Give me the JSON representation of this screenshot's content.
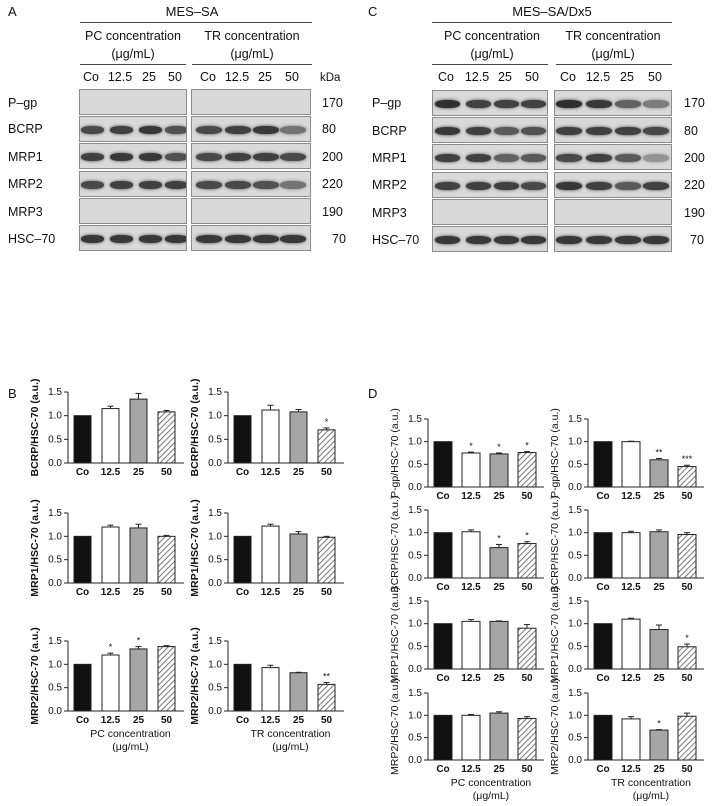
{
  "letters": [
    "A",
    "B",
    "C",
    "D"
  ],
  "blotA": {
    "title": "MES–SA",
    "pc_title": [
      "PC concentration",
      "(μg/mL)"
    ],
    "tr_title": [
      "TR concentration",
      "(μg/mL)"
    ],
    "lanes": [
      "Co",
      "12.5",
      "25",
      "50"
    ],
    "kda": "kDa",
    "rows": [
      {
        "label": "P–gp",
        "mw": "170"
      },
      {
        "label": "BCRP",
        "mw": "80"
      },
      {
        "label": "MRP1",
        "mw": "200"
      },
      {
        "label": "MRP2",
        "mw": "220"
      },
      {
        "label": "MRP3",
        "mw": "190"
      },
      {
        "label": "HSC–70",
        "mw": "70"
      }
    ]
  },
  "blotC": {
    "title": "MES–SA/Dx5",
    "pc_title": [
      "PC concentration",
      "(μg/mL)"
    ],
    "tr_title": [
      "TR concentration",
      "(μg/mL)"
    ],
    "lanes": [
      "Co",
      "12.5",
      "25",
      "50"
    ],
    "rows": [
      {
        "label": "P–gp",
        "mw": "170"
      },
      {
        "label": "BCRP",
        "mw": "80"
      },
      {
        "label": "MRP1",
        "mw": "200"
      },
      {
        "label": "MRP2",
        "mw": "220"
      },
      {
        "label": "MRP3",
        "mw": "190"
      },
      {
        "label": "HSC–70",
        "mw": "70"
      }
    ]
  },
  "chart_data": [
    {
      "type": "bar",
      "panel": "B",
      "ylabel": "BCRP/HSC-70 (a.u.)",
      "categories": [
        "Co",
        "12.5",
        "25",
        "50"
      ],
      "values": [
        1.0,
        1.15,
        1.35,
        1.08
      ],
      "errors": [
        0,
        0.05,
        0.12,
        0.03
      ],
      "sig": [
        "",
        "",
        "",
        ""
      ],
      "ylim": [
        0,
        1.5
      ],
      "yticks": [
        "0.0",
        "0.5",
        "1.0",
        "1.5"
      ]
    },
    {
      "type": "bar",
      "panel": "B",
      "ylabel": "BCRP/HSC-70 (a.u.)",
      "categories": [
        "Co",
        "12.5",
        "25",
        "50"
      ],
      "values": [
        1.0,
        1.12,
        1.08,
        0.7
      ],
      "errors": [
        0,
        0.1,
        0.05,
        0.04
      ],
      "sig": [
        "",
        "",
        "",
        "*"
      ],
      "ylim": [
        0,
        1.5
      ],
      "yticks": [
        "0.0",
        "0.5",
        "1.0",
        "1.5"
      ]
    },
    {
      "type": "bar",
      "panel": "B",
      "ylabel": "MRP1/HSC-70 (a.u.)",
      "categories": [
        "Co",
        "12.5",
        "25",
        "50"
      ],
      "values": [
        1.0,
        1.2,
        1.18,
        1.0
      ],
      "errors": [
        0,
        0.04,
        0.08,
        0.02
      ],
      "sig": [
        "",
        "",
        "",
        ""
      ],
      "ylim": [
        0,
        1.5
      ],
      "yticks": [
        "0.0",
        "0.5",
        "1.0",
        "1.5"
      ]
    },
    {
      "type": "bar",
      "panel": "B",
      "ylabel": "MRP1/HSC-70 (a.u.)",
      "categories": [
        "Co",
        "12.5",
        "25",
        "50"
      ],
      "values": [
        1.0,
        1.22,
        1.05,
        0.98
      ],
      "errors": [
        0,
        0.04,
        0.05,
        0.02
      ],
      "sig": [
        "",
        "",
        "",
        ""
      ],
      "ylim": [
        0,
        1.5
      ],
      "yticks": [
        "0.0",
        "0.5",
        "1.0",
        "1.5"
      ]
    },
    {
      "type": "bar",
      "panel": "B",
      "ylabel": "MRP2/HSC-70 (a.u.)",
      "categories": [
        "Co",
        "12.5",
        "25",
        "50"
      ],
      "values": [
        1.0,
        1.2,
        1.33,
        1.38
      ],
      "errors": [
        0,
        0.04,
        0.05,
        0.02
      ],
      "sig": [
        "",
        "*",
        "*",
        ""
      ],
      "ylim": [
        0,
        1.5
      ],
      "yticks": [
        "0.0",
        "0.5",
        "1.0",
        "1.5"
      ],
      "xlabel": [
        "PC concentration",
        "(μg/mL)"
      ]
    },
    {
      "type": "bar",
      "panel": "B",
      "ylabel": "MRP2/HSC-70 (a.u.)",
      "categories": [
        "Co",
        "12.5",
        "25",
        "50"
      ],
      "values": [
        1.0,
        0.93,
        0.82,
        0.57
      ],
      "errors": [
        0,
        0.05,
        0.01,
        0.04
      ],
      "sig": [
        "",
        "",
        "",
        "**"
      ],
      "ylim": [
        0,
        1.5
      ],
      "yticks": [
        "0.0",
        "0.5",
        "1.0",
        "1.5"
      ],
      "xlabel": [
        "TR concentration",
        "(μg/mL)"
      ]
    },
    {
      "type": "bar",
      "panel": "D",
      "ylabel": "P-gp/HSC-70 (a.u.)",
      "categories": [
        "Co",
        "12.5",
        "25",
        "50"
      ],
      "values": [
        1.0,
        0.75,
        0.73,
        0.76
      ],
      "errors": [
        0,
        0.02,
        0.02,
        0.02
      ],
      "sig": [
        "",
        "*",
        "*",
        "*"
      ],
      "ylim": [
        0,
        1.5
      ],
      "yticks": [
        "0.0",
        "0.5",
        "1.0",
        "1.5"
      ]
    },
    {
      "type": "bar",
      "panel": "D",
      "ylabel": "P-gp/HSC-70 (a.u.)",
      "categories": [
        "Co",
        "12.5",
        "25",
        "50"
      ],
      "values": [
        1.0,
        1.0,
        0.6,
        0.45
      ],
      "errors": [
        0,
        0.01,
        0.03,
        0.03
      ],
      "sig": [
        "",
        "",
        "**",
        "***"
      ],
      "ylim": [
        0,
        1.5
      ],
      "yticks": [
        "0.0",
        "0.5",
        "1.0",
        "1.5"
      ]
    },
    {
      "type": "bar",
      "panel": "D",
      "ylabel": "BCRP/HSC-70 (a.u.)",
      "categories": [
        "Co",
        "12.5",
        "25",
        "50"
      ],
      "values": [
        1.0,
        1.02,
        0.67,
        0.76
      ],
      "errors": [
        0,
        0.04,
        0.07,
        0.04
      ],
      "sig": [
        "",
        "",
        "*",
        "*"
      ],
      "ylim": [
        0,
        1.5
      ],
      "yticks": [
        "0.0",
        "0.5",
        "1.0",
        "1.5"
      ]
    },
    {
      "type": "bar",
      "panel": "D",
      "ylabel": "BCRP/HSC-70 (a.u.)",
      "categories": [
        "Co",
        "12.5",
        "25",
        "50"
      ],
      "values": [
        1.0,
        1.0,
        1.02,
        0.96
      ],
      "errors": [
        0,
        0.03,
        0.04,
        0.04
      ],
      "sig": [
        "",
        "",
        "",
        ""
      ],
      "ylim": [
        0,
        1.5
      ],
      "yticks": [
        "0.0",
        "0.5",
        "1.0",
        "1.5"
      ]
    },
    {
      "type": "bar",
      "panel": "D",
      "ylabel": "MRP1/HSC-70 (a.u.)",
      "categories": [
        "Co",
        "12.5",
        "25",
        "50"
      ],
      "values": [
        1.0,
        1.05,
        1.05,
        0.9
      ],
      "errors": [
        0,
        0.04,
        0.01,
        0.08
      ],
      "sig": [
        "",
        "",
        "",
        ""
      ],
      "ylim": [
        0,
        1.5
      ],
      "yticks": [
        "0.0",
        "0.5",
        "1.0",
        "1.5"
      ]
    },
    {
      "type": "bar",
      "panel": "D",
      "ylabel": "MRP1/HSC-70 (a.u.)",
      "categories": [
        "Co",
        "12.5",
        "25",
        "50"
      ],
      "values": [
        1.0,
        1.1,
        0.87,
        0.49
      ],
      "errors": [
        0,
        0.02,
        0.1,
        0.06
      ],
      "sig": [
        "",
        "",
        "",
        "*"
      ],
      "ylim": [
        0,
        1.5
      ],
      "yticks": [
        "0.0",
        "0.5",
        "1.0",
        "1.5"
      ]
    },
    {
      "type": "bar",
      "panel": "D",
      "ylabel": "MRP2/HSC-70 (a.u.)",
      "categories": [
        "Co",
        "12.5",
        "25",
        "50"
      ],
      "values": [
        1.0,
        1.0,
        1.05,
        0.93
      ],
      "errors": [
        0,
        0.02,
        0.03,
        0.04
      ],
      "sig": [
        "",
        "",
        "",
        ""
      ],
      "ylim": [
        0,
        1.5
      ],
      "yticks": [
        "0.0",
        "0.5",
        "1.0",
        "1.5"
      ],
      "xlabel": [
        "PC concentration",
        "(μg/mL)"
      ]
    },
    {
      "type": "bar",
      "panel": "D",
      "ylabel": "MRP2/HSC-70 (a.u.)",
      "categories": [
        "Co",
        "12.5",
        "25",
        "50"
      ],
      "values": [
        1.0,
        0.92,
        0.67,
        0.98
      ],
      "errors": [
        0,
        0.05,
        0.01,
        0.07
      ],
      "sig": [
        "",
        "",
        "*",
        ""
      ],
      "ylim": [
        0,
        1.5
      ],
      "yticks": [
        "0.0",
        "0.5",
        "1.0",
        "1.5"
      ],
      "xlabel": [
        "TR concentration",
        "(μg/mL)"
      ]
    }
  ]
}
